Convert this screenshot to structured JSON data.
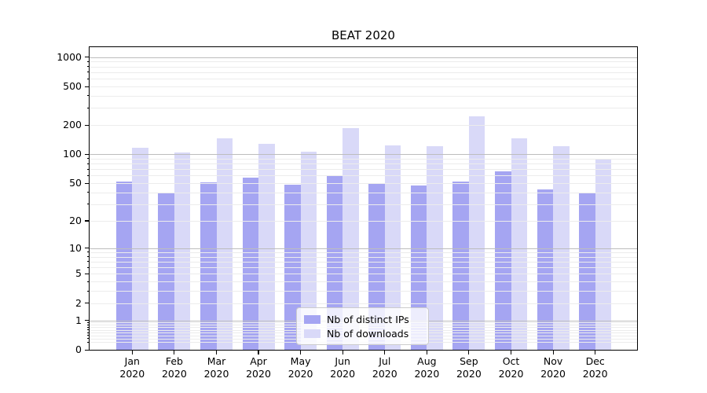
{
  "chart_data": {
    "type": "bar",
    "title": "BEAT 2020",
    "categories": [
      "Jan",
      "Feb",
      "Mar",
      "Apr",
      "May",
      "Jun",
      "Jul",
      "Aug",
      "Sep",
      "Oct",
      "Nov",
      "Dec"
    ],
    "category_year": "2020",
    "series": [
      {
        "name": "Nb of distinct IPs",
        "color": "#a5a5f2",
        "values": [
          52,
          40,
          51,
          57,
          48,
          61,
          49,
          47,
          52,
          67,
          43,
          39
        ]
      },
      {
        "name": "Nb of downloads",
        "color": "#d9d9f8",
        "values": [
          116,
          104,
          145,
          128,
          107,
          188,
          124,
          122,
          248,
          145,
          122,
          90
        ]
      }
    ],
    "yscale": "log1p",
    "y_ticks": [
      0,
      1,
      2,
      5,
      10,
      20,
      50,
      100,
      200,
      500,
      1000
    ],
    "ylim": [
      0,
      1270
    ],
    "xlabel": "",
    "ylabel": "",
    "grid": true,
    "legend_position": "lower center",
    "colors": {
      "axis": "#000000",
      "grid_major": "#bdbdbd",
      "grid_minor": "#ececec",
      "background": "#ffffff"
    }
  }
}
